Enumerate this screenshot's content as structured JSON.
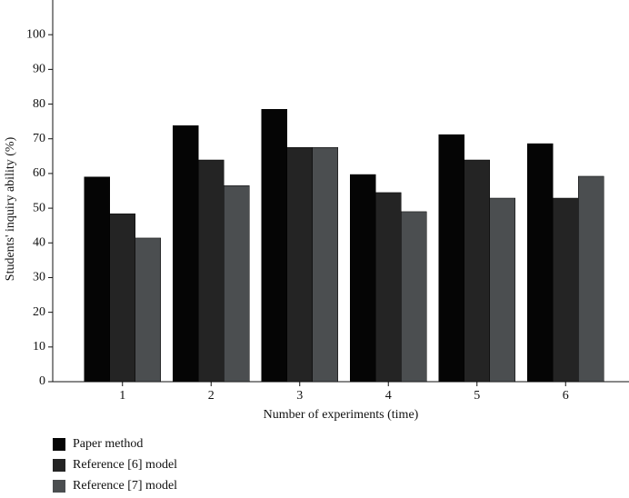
{
  "chart_data": {
    "type": "bar",
    "x_label": "Number of experiments (time)",
    "y_label": "Students' inquiry ability (%)",
    "categories": [
      "1",
      "2",
      "3",
      "4",
      "5",
      "6"
    ],
    "series": [
      {
        "name": "Paper method",
        "color": "#050505",
        "values": [
          59,
          73.8,
          78.5,
          59.7,
          71.2,
          68.6
        ]
      },
      {
        "name": "Reference [6] model",
        "color": "#242424",
        "values": [
          48.4,
          63.9,
          67.5,
          54.5,
          63.9,
          52.9
        ]
      },
      {
        "name": "Reference [7] model",
        "color": "#4b4e50",
        "values": [
          41.4,
          56.5,
          67.5,
          49,
          52.9,
          59.2
        ]
      }
    ],
    "ylim": [
      0,
      110
    ],
    "yticks": [
      0,
      10,
      20,
      30,
      40,
      50,
      60,
      70,
      80,
      90,
      100
    ],
    "legend": "bottom-left"
  }
}
